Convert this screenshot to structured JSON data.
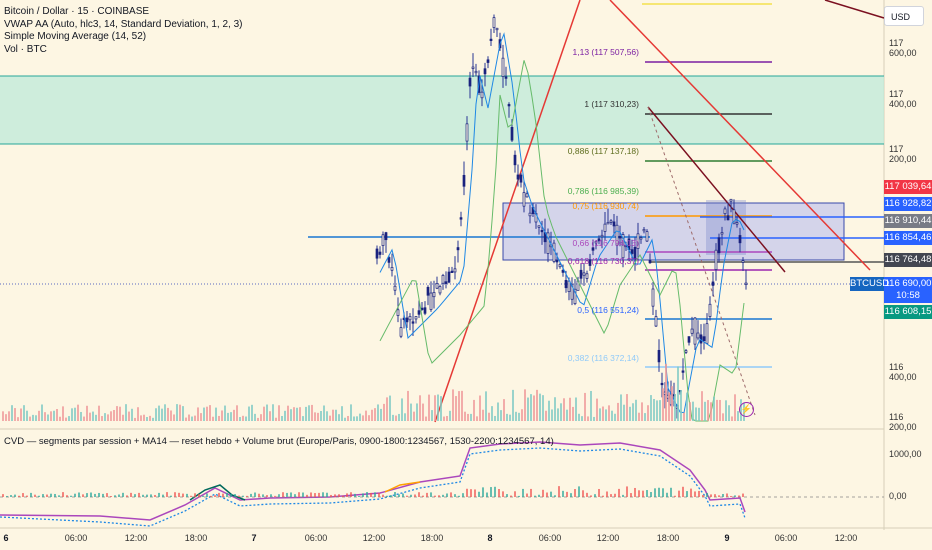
{
  "legend": {
    "symbol": "Bitcoin / Dollar · 15 · COINBASE",
    "vwap": "VWAP AA (Auto, hlc3, 14, Standard Deviation, 1, 2, 3)",
    "sma": "Simple Moving Average (14, 52)",
    "vol": "Vol · BTC"
  },
  "currency_button": "USD",
  "price_axis": [
    "117 600,00",
    "117 400,00",
    "117 200,00",
    "116 400,00",
    "116 200,00"
  ],
  "price_labels": [
    {
      "text": "117 039,64",
      "color": "#f23645"
    },
    {
      "text": "116 928,82",
      "color": "#2962ff"
    },
    {
      "text": "116 910,44",
      "color": "#787b86"
    },
    {
      "text": "116 854,46",
      "color": "#2962ff"
    },
    {
      "text": "116 764,48",
      "color": "#434651"
    },
    {
      "text": "116 690,00",
      "color": "#2962ff"
    },
    {
      "text": "10:58",
      "color": "#2962ff"
    },
    {
      "text": "116 608,15",
      "color": "#089981"
    }
  ],
  "symbol_tag": "BTCUSD",
  "fib_levels": [
    {
      "text": "1,13 (117 507,56)",
      "color": "#7b1fa2"
    },
    {
      "text": "1 (117 310,23)",
      "color": "#333333"
    },
    {
      "text": "0,886 (117 137,18)",
      "color": "#5d6d1e"
    },
    {
      "text": "0,786 (116 985,39)",
      "color": "#4caf50"
    },
    {
      "text": "0,75 (116 930,74)",
      "color": "#ff9800"
    },
    {
      "text": "0,66 (116 794,13)",
      "color": "#ab47bc"
    },
    {
      "text": "0,618 (116 730,37)",
      "color": "#9c27b0"
    },
    {
      "text": "0,5 (116 551,24)",
      "color": "#2962ff"
    },
    {
      "text": "0,382 (116 372,14)",
      "color": "#90caf9"
    }
  ],
  "cvd": {
    "title": "CVD — segments par session + MA14 — reset hebdo + Volume brut (Europe/Paris, 0900-1800:1234567, 1530-2200:1234567, 14)",
    "axis": [
      "1000,00",
      "0,00"
    ]
  },
  "time_axis": [
    {
      "text": "6",
      "bold": true
    },
    {
      "text": "06:00",
      "bold": false
    },
    {
      "text": "12:00",
      "bold": false
    },
    {
      "text": "18:00",
      "bold": false
    },
    {
      "text": "7",
      "bold": true
    },
    {
      "text": "06:00",
      "bold": false
    },
    {
      "text": "12:00",
      "bold": false
    },
    {
      "text": "18:00",
      "bold": false
    },
    {
      "text": "8",
      "bold": true
    },
    {
      "text": "06:00",
      "bold": false
    },
    {
      "text": "12:00",
      "bold": false
    },
    {
      "text": "18:00",
      "bold": false
    },
    {
      "text": "9",
      "bold": true
    },
    {
      "text": "06:00",
      "bold": false
    },
    {
      "text": "12:00",
      "bold": false
    }
  ],
  "colors": {
    "background": "#fdf6e3",
    "candle": "#1a237e",
    "wick": "#283593",
    "zone": "#b9ead8",
    "box": "#b3b8f0",
    "trend_red": "#e53935",
    "trend_dark": "#7b1020"
  },
  "icons": [
    "lightning-icon"
  ]
}
